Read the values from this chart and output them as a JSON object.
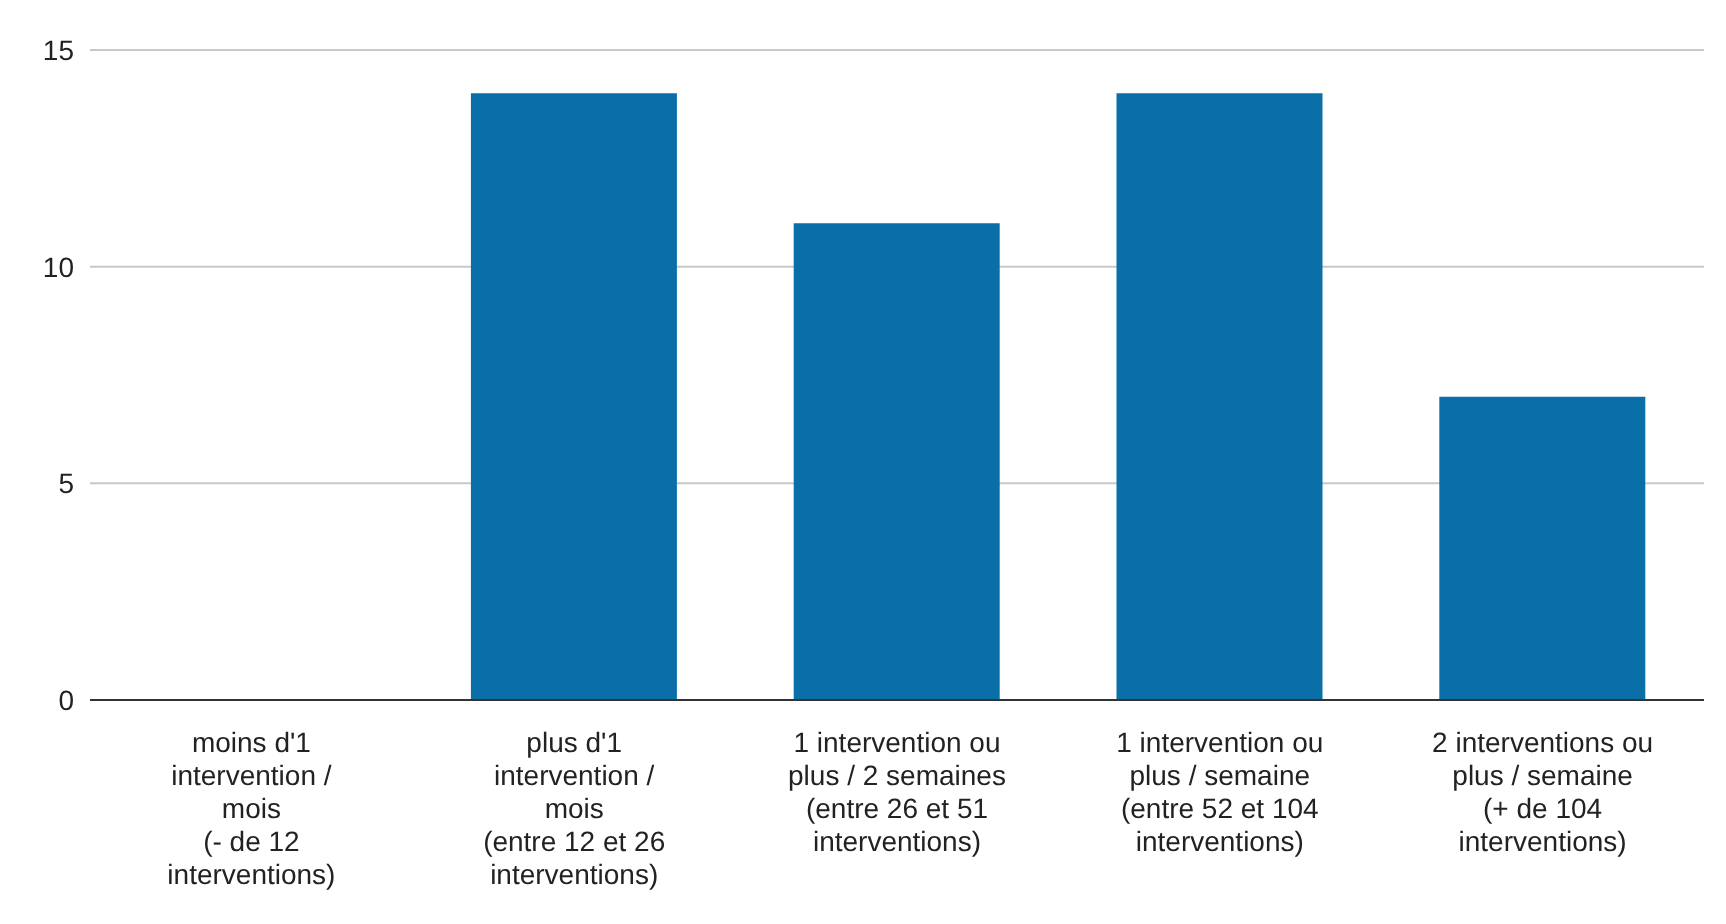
{
  "chart_data": {
    "type": "bar",
    "categories": [
      "moins d'1\nintervention /\nmois\n(- de 12\ninterventions)",
      "plus d'1\nintervention /\nmois\n(entre 12 et 26\ninterventions)",
      "1 intervention ou\nplus / 2 semaines\n(entre 26 et 51\ninterventions)",
      "1 intervention ou\nplus / semaine\n(entre 52 et 104\ninterventions)",
      "2 interventions ou\nplus / semaine\n(+ de 104\ninterventions)"
    ],
    "values": [
      0,
      14,
      11,
      14,
      7
    ],
    "color": "#0a6fa8",
    "ylim": [
      0,
      15
    ],
    "yticks": [
      0,
      5,
      10,
      15
    ],
    "grid": "y",
    "legend": false
  }
}
